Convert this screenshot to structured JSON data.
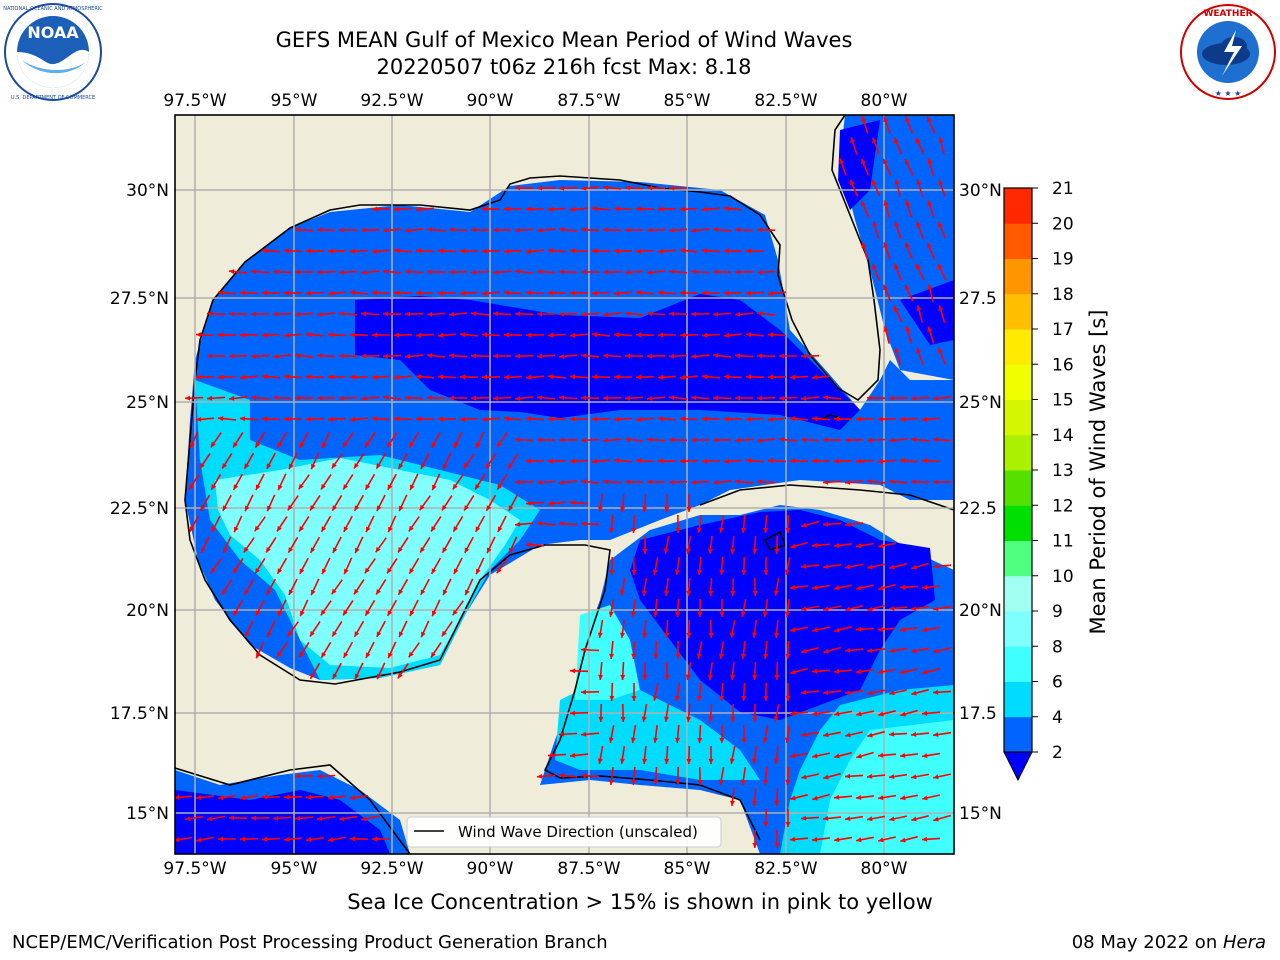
{
  "header": {
    "title_line1": "GEFS MEAN Gulf of Mexico Mean Period of Wind Waves",
    "title_line2": "20220507 t06z 216h fcst   Max: 8.18"
  },
  "logos": {
    "left": {
      "name": "NOAA",
      "ring_text": "NATIONAL OCEANIC AND ATMOSPHERIC ADMINISTRATION · U.S. DEPARTMENT OF COMMERCE"
    },
    "right": {
      "name": "NATIONAL WEATHER SERVICE"
    }
  },
  "map": {
    "lon_labels": [
      "97.5°W",
      "95°W",
      "92.5°W",
      "90°W",
      "87.5°W",
      "85°W",
      "82.5°W",
      "80°W"
    ],
    "lat_labels": [
      "30°N",
      "27.5°N",
      "25°N",
      "22.5°N",
      "20°N",
      "17.5°N",
      "15°N"
    ],
    "lat_labels_right": [
      "30°N",
      "27.5",
      "25°N",
      "22.5",
      "20°N",
      "17.5",
      "15°N"
    ],
    "legend_label": "Wind Wave Direction (unscaled)",
    "land_color": "#efedda",
    "arrow_color": "#ff0000"
  },
  "colorbar": {
    "label": "Mean Period of Wind Waves [s]",
    "ticks": [
      "2",
      "4",
      "6",
      "8",
      "9",
      "10",
      "11",
      "12",
      "13",
      "14",
      "15",
      "16",
      "17",
      "18",
      "19",
      "20",
      "21"
    ],
    "colors": [
      "#0064ff",
      "#00dcff",
      "#40ffff",
      "#80ffff",
      "#a0fff0",
      "#50ff80",
      "#00e000",
      "#55e000",
      "#aaf000",
      "#d4f700",
      "#f0ff00",
      "#ffea00",
      "#ffbf00",
      "#ff9600",
      "#ff5a00",
      "#ff2800",
      "#ff0000"
    ],
    "under_color": "#0000ff"
  },
  "chart_data": {
    "type": "heatmap",
    "title": "GEFS MEAN Gulf of Mexico Mean Period of Wind Waves",
    "subtitle": "20220507 t06z 216h fcst   Max: 8.18",
    "variable": "Mean Period of Wind Waves [s]",
    "max_value": 8.18,
    "levels": [
      2,
      4,
      6,
      8,
      9,
      10,
      11,
      12,
      13,
      14,
      15,
      16,
      17,
      18,
      19,
      20,
      21
    ],
    "xlim": [
      "98°W",
      "78.3°W"
    ],
    "ylim": [
      "14°N",
      "31.8°N"
    ],
    "grid": true,
    "legend": "lower-center"
  },
  "notes": {
    "sea_ice": "Sea Ice Concentration > 15% is shown in pink to yellow",
    "branch": "NCEP/EMC/Verification Post Processing Product Generation Branch",
    "date_prefix": "08 May 2022 on ",
    "machine": "Hera"
  }
}
